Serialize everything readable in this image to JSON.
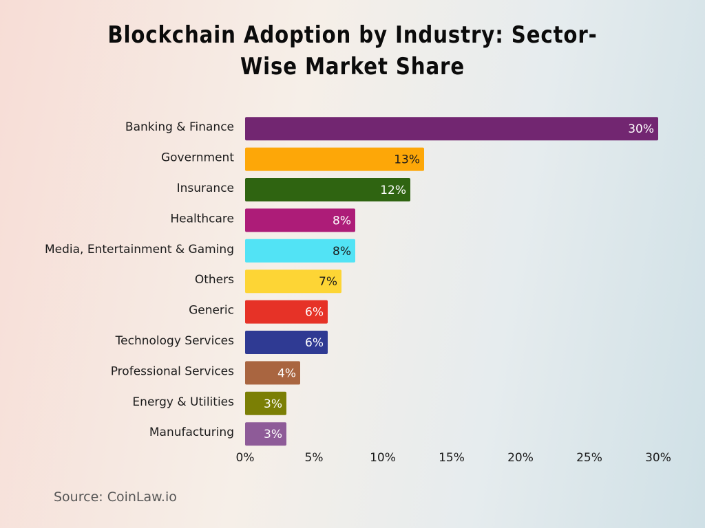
{
  "chart_data": {
    "type": "hbar",
    "title": "Blockchain Adoption by Industry: Sector-Wise Market Share",
    "categories": [
      "Banking & Finance",
      "Government",
      "Insurance",
      "Healthcare",
      "Media, Entertainment & Gaming",
      "Others",
      "Generic",
      "Technology Services",
      "Professional Services",
      "Energy & Utilities",
      "Manufacturing"
    ],
    "values": [
      30,
      13,
      12,
      8,
      8,
      7,
      6,
      6,
      4,
      3,
      3
    ],
    "value_labels": [
      "30%",
      "13%",
      "12%",
      "8%",
      "8%",
      "7%",
      "6%",
      "6%",
      "4%",
      "3%",
      "3%"
    ],
    "colors": [
      "#722671",
      "#fda708",
      "#2f6411",
      "#ad1c78",
      "#52e3f5",
      "#fdd535",
      "#e63227",
      "#2f3a93",
      "#a96540",
      "#7b7f05",
      "#8e5b98"
    ],
    "xlim": [
      0,
      30
    ],
    "xticks": [
      {
        "value": 0,
        "label": "0%"
      },
      {
        "value": 5,
        "label": "5%"
      },
      {
        "value": 10,
        "label": "10%"
      },
      {
        "value": 15,
        "label": "15%"
      },
      {
        "value": 20,
        "label": "20%"
      },
      {
        "value": 25,
        "label": "25%"
      },
      {
        "value": 30,
        "label": "30%"
      }
    ],
    "grid": false,
    "source": "Source: CoinLaw.io"
  }
}
